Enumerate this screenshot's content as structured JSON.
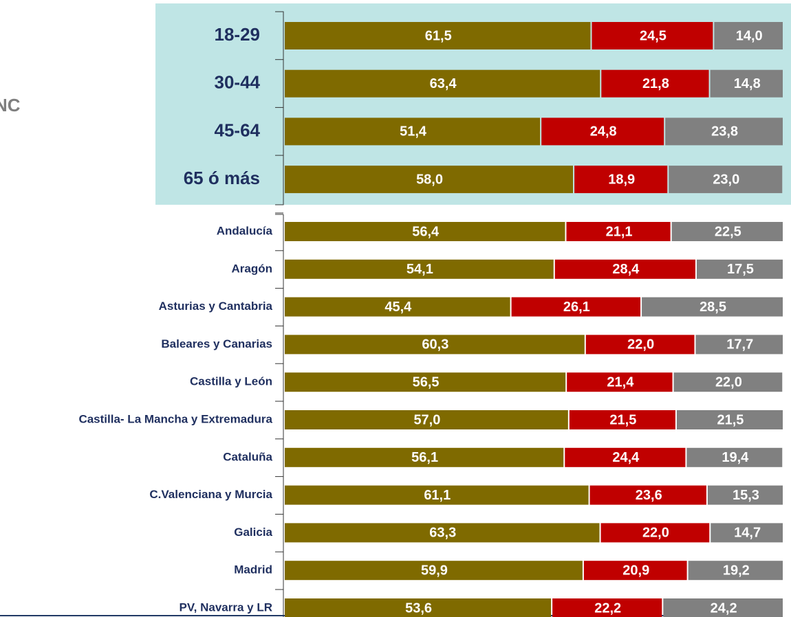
{
  "chart_data": {
    "type": "stacked-barh",
    "annotations": [
      "NC"
    ],
    "categories": [
      "18-29",
      "30-44",
      "45-64",
      "65 ó más",
      "Andalucía",
      "Aragón",
      "Asturias y Cantabria",
      "Baleares y Canarias",
      "Castilla y León",
      "Castilla- La Mancha y Extremadura",
      "Cataluña",
      "C.Valenciana y Murcia",
      "Galicia",
      "Madrid",
      "PV, Navarra y LR"
    ],
    "xlim": [
      0,
      100
    ],
    "series": [
      {
        "color": "#7f6a00",
        "values": [
          61.5,
          63.4,
          51.4,
          58.0,
          56.4,
          54.1,
          45.4,
          60.3,
          56.5,
          57.0,
          56.1,
          61.1,
          63.3,
          59.9,
          53.6
        ],
        "value_labels": [
          "61,5",
          "63,4",
          "51,4",
          "58,0",
          "56,4",
          "54,1",
          "45,4",
          "60,3",
          "56,5",
          "57,0",
          "56,1",
          "61,1",
          "63,3",
          "59,9",
          "53,6"
        ]
      },
      {
        "color": "#c00000",
        "values": [
          24.5,
          21.8,
          24.8,
          18.9,
          21.1,
          28.4,
          26.1,
          22.0,
          21.4,
          21.5,
          24.4,
          23.6,
          22.0,
          20.9,
          22.2
        ],
        "value_labels": [
          "24,5",
          "21,8",
          "24,8",
          "18,9",
          "21,1",
          "28,4",
          "26,1",
          "22,0",
          "21,4",
          "21,5",
          "24,4",
          "23,6",
          "22,0",
          "20,9",
          "22,2"
        ]
      },
      {
        "color": "#808080",
        "values": [
          14.0,
          14.8,
          23.8,
          23.0,
          22.5,
          17.5,
          28.5,
          17.7,
          22.0,
          21.5,
          19.4,
          15.3,
          14.7,
          19.2,
          24.2
        ],
        "value_labels": [
          "14,0",
          "14,8",
          "23,8",
          "23,0",
          "22,5",
          "17,5",
          "28,5",
          "17,7",
          "22,0",
          "21,5",
          "19,4",
          "15,3",
          "14,7",
          "19,2",
          "24,2"
        ]
      }
    ]
  }
}
